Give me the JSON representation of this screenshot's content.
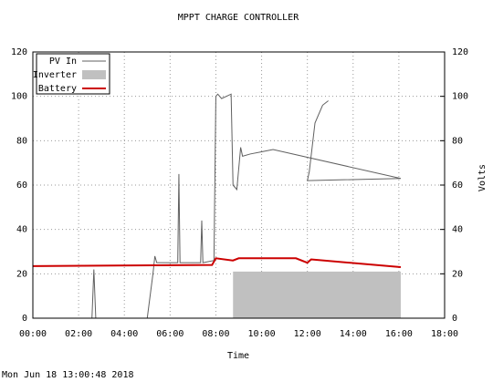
{
  "chart_data": {
    "type": "line",
    "title": "MPPT CHARGE CONTROLLER",
    "x_label": "Time",
    "y2_label": "Volts",
    "footer": "Mon Jun 18 13:00:48 2018",
    "xlim": [
      "00:00",
      "18:00"
    ],
    "xticks": [
      "00:00",
      "02:00",
      "04:00",
      "06:00",
      "08:00",
      "10:00",
      "12:00",
      "14:00",
      "16:00",
      "18:00"
    ],
    "ylim": [
      0,
      120
    ],
    "yticks": [
      0,
      20,
      40,
      60,
      80,
      100,
      120
    ],
    "y2lim": [
      0,
      120
    ],
    "y2ticks": [
      0,
      20,
      40,
      60,
      80,
      100,
      120
    ],
    "grid": true,
    "legend": "top-left",
    "series": [
      {
        "name": "PV In",
        "color": "#606060",
        "kind": "line",
        "x": [
          "00:00",
          "02:35",
          "02:40",
          "02:45",
          "05:00",
          "05:15",
          "05:20",
          "05:25",
          "06:20",
          "06:23",
          "06:26",
          "07:20",
          "07:23",
          "07:26",
          "07:55",
          "08:00",
          "08:05",
          "08:15",
          "08:40",
          "08:45",
          "08:55",
          "09:05",
          "09:10",
          "09:30",
          "10:00",
          "10:30",
          "16:05",
          "12:00",
          "12:05",
          "12:20",
          "12:40",
          "12:55"
        ],
        "values": [
          0,
          0,
          22,
          0,
          0,
          20,
          28,
          25,
          25,
          65,
          25,
          25,
          44,
          25,
          26,
          100,
          101,
          99,
          101,
          60,
          58,
          77,
          73,
          74,
          75,
          76,
          63,
          62,
          66,
          88,
          96,
          98
        ]
      },
      {
        "name": "Inverter",
        "color": "#c0c0c0",
        "kind": "area",
        "x": [
          "08:45",
          "16:05"
        ],
        "values": [
          21,
          21
        ]
      },
      {
        "name": "Battery",
        "color": "#cc0000",
        "kind": "line",
        "x": [
          "00:00",
          "07:50",
          "08:00",
          "08:45",
          "09:00",
          "11:30",
          "12:00",
          "12:10",
          "16:05"
        ],
        "values": [
          23.5,
          24,
          27,
          26,
          27,
          27,
          25,
          26.5,
          23
        ]
      }
    ]
  }
}
